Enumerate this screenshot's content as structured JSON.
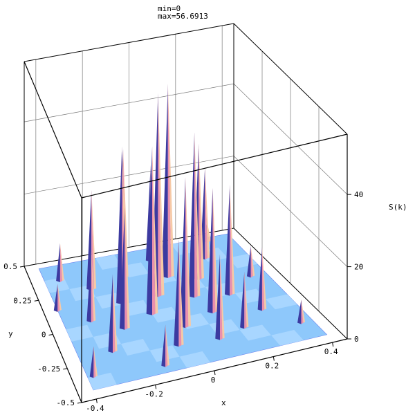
{
  "chart_data": {
    "type": "surface3d",
    "title_lines": [
      "min=0",
      "max=56.6913"
    ],
    "min": 0,
    "max": 56.6913,
    "xlabel": "x",
    "ylabel": "y",
    "zlabel": "S(k)",
    "x_ticks": [
      "-0.4",
      "-0.2",
      "0",
      "0.2",
      "0.4"
    ],
    "y_ticks": [
      "-0.5",
      "-0.25",
      "0",
      "0.25",
      "0.5"
    ],
    "z_ticks": [
      "0",
      "20",
      "40"
    ],
    "xlim": [
      -0.45,
      0.45
    ],
    "ylim": [
      -0.5,
      0.5
    ],
    "zlim": [
      0,
      56.6913
    ],
    "colors": {
      "peak_light": "#f6c9a6",
      "peak_pink": "#e98fae",
      "peak_dark": "#3c3aa0",
      "floor_light": "#bfe4ff",
      "floor_mid": "#8ec8fb",
      "floor_dark": "#6f86ef"
    },
    "peaks": [
      {
        "x": -0.02,
        "y": 0.1,
        "z": 56.7
      },
      {
        "x": 0.06,
        "y": 0.22,
        "z": 54
      },
      {
        "x": -0.08,
        "y": -0.02,
        "z": 47
      },
      {
        "x": 0.1,
        "y": 0.04,
        "z": 46
      },
      {
        "x": -0.16,
        "y": 0.1,
        "z": 44
      },
      {
        "x": 0.0,
        "y": -0.16,
        "z": 42
      },
      {
        "x": 0.16,
        "y": 0.16,
        "z": 38
      },
      {
        "x": -0.1,
        "y": 0.28,
        "z": 36
      },
      {
        "x": 0.12,
        "y": -0.1,
        "z": 35
      },
      {
        "x": -0.2,
        "y": -0.08,
        "z": 34
      },
      {
        "x": -0.06,
        "y": -0.28,
        "z": 30
      },
      {
        "x": 0.22,
        "y": 0.0,
        "z": 31
      },
      {
        "x": -0.24,
        "y": 0.24,
        "z": 28
      },
      {
        "x": 0.04,
        "y": 0.36,
        "z": 27
      },
      {
        "x": 0.24,
        "y": 0.3,
        "z": 26
      },
      {
        "x": 0.08,
        "y": -0.3,
        "z": 24
      },
      {
        "x": -0.28,
        "y": -0.22,
        "z": 22
      },
      {
        "x": 0.28,
        "y": -0.16,
        "z": 18
      },
      {
        "x": -0.3,
        "y": 0.02,
        "z": 20
      },
      {
        "x": 0.18,
        "y": -0.26,
        "z": 16
      },
      {
        "x": -0.14,
        "y": -0.4,
        "z": 12
      },
      {
        "x": -0.34,
        "y": 0.34,
        "z": 11
      },
      {
        "x": 0.34,
        "y": 0.1,
        "z": 9
      },
      {
        "x": -0.38,
        "y": -0.36,
        "z": 9
      },
      {
        "x": 0.36,
        "y": -0.32,
        "z": 7
      },
      {
        "x": -0.4,
        "y": 0.14,
        "z": 8
      },
      {
        "x": 0.3,
        "y": 0.42,
        "z": 6
      }
    ]
  }
}
